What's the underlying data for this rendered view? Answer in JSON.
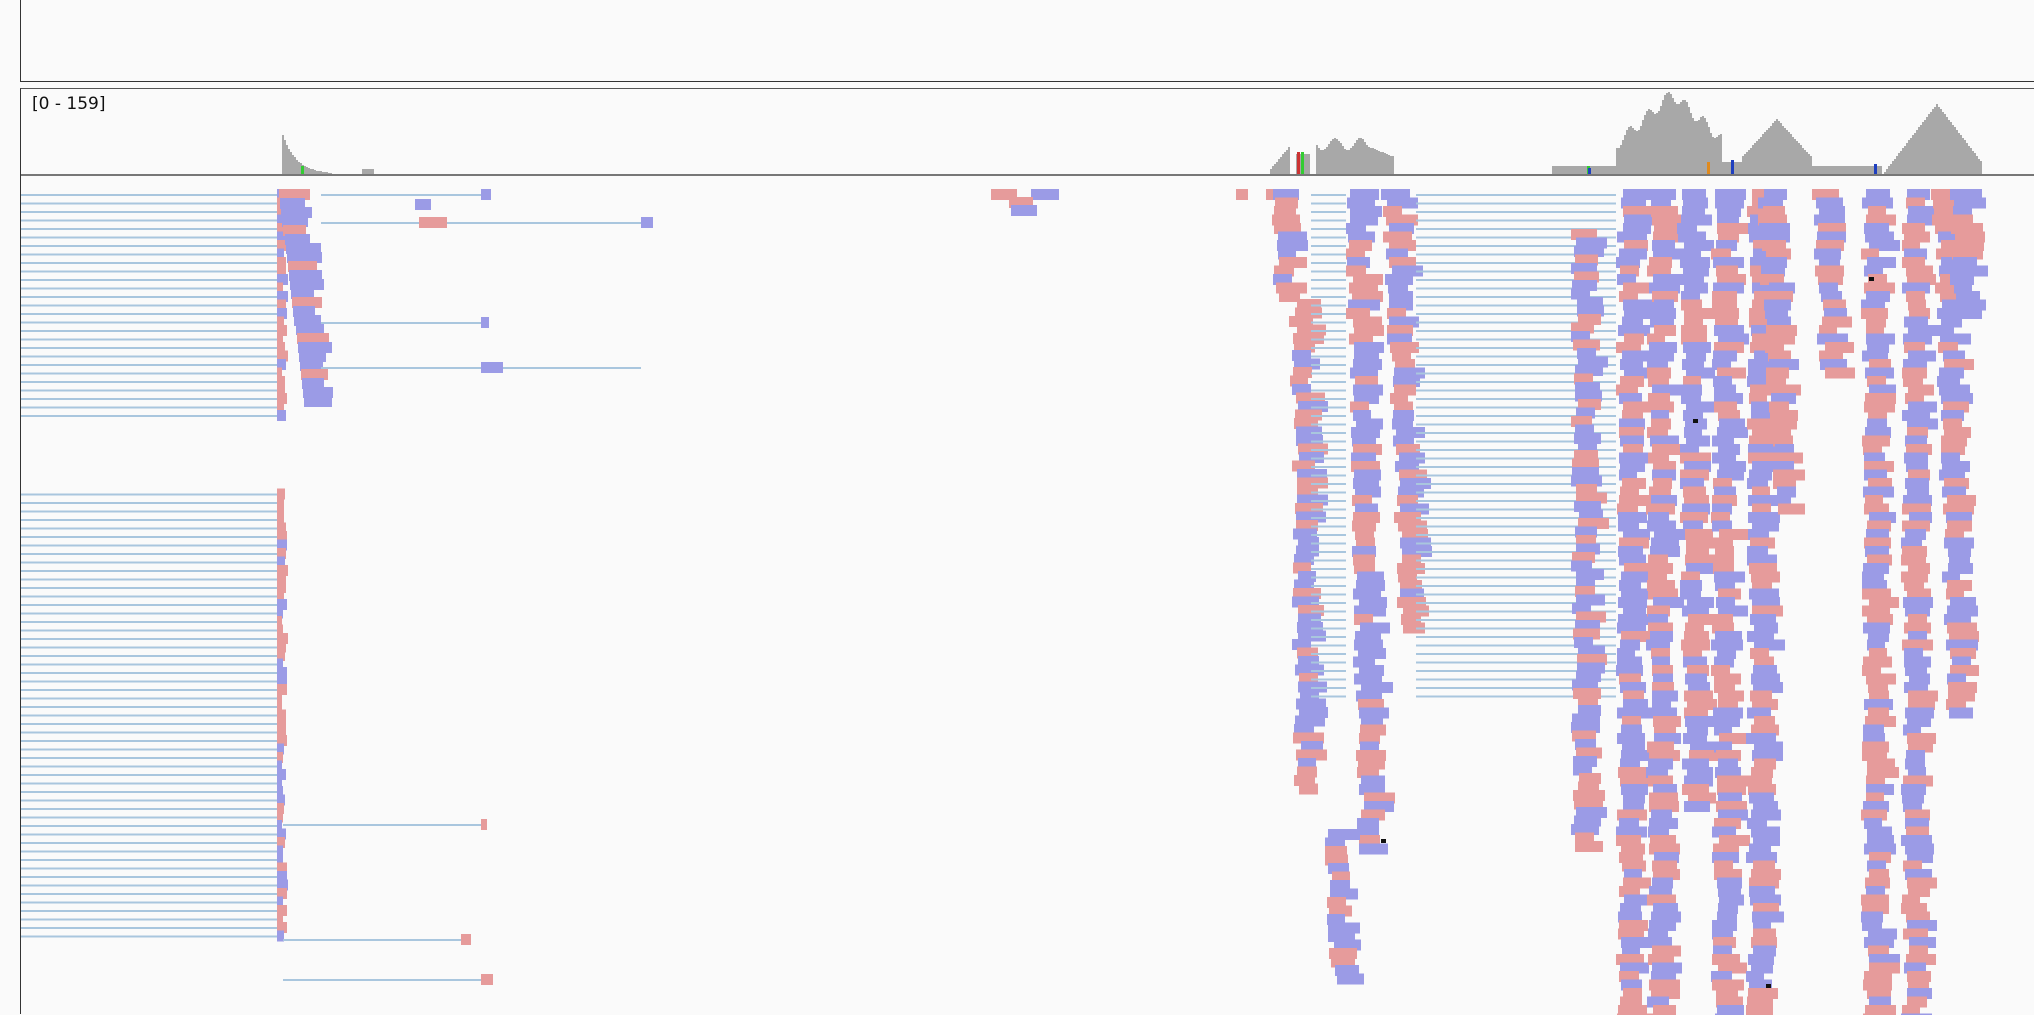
{
  "coverage_track": {
    "range_label": "[0 - 159]"
  },
  "colors": {
    "coverage": "#a8a8a8",
    "forward_read": "#9b9be6",
    "reverse_read": "#e69b9b",
    "split_line": "#a9c6de",
    "mismatch_a": "#33cc33",
    "mismatch_c": "#1f3fbf",
    "mismatch_g": "#e08a1e",
    "mismatch_t": "#cc3333",
    "background": "#fafafa"
  }
}
